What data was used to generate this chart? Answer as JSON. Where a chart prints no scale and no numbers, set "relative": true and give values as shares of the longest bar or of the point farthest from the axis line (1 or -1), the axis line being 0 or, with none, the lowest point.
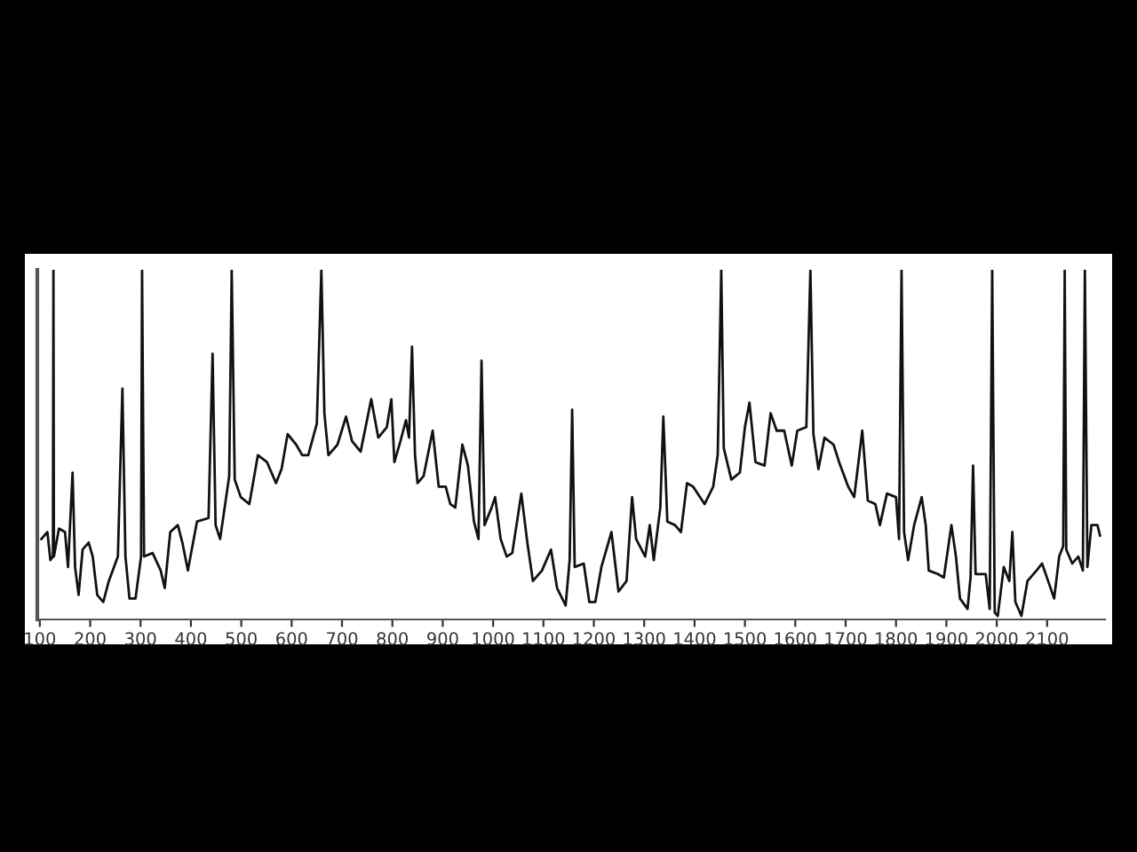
{
  "chart_data": {
    "type": "line",
    "relative": true,
    "color": "#111111",
    "grid": false,
    "legend": false,
    "marker": "none",
    "line_style": "solid",
    "tick_labels": "x",
    "xlim": [
      95,
      2215
    ],
    "xticks": [
      100,
      200,
      300,
      400,
      500,
      600,
      700,
      800,
      900,
      1000,
      1100,
      1200,
      1300,
      1400,
      1500,
      1600,
      1700,
      1800,
      1900,
      2000,
      2100
    ],
    "x": [
      103,
      115,
      121,
      126,
      127,
      128,
      138,
      150,
      156,
      165,
      170,
      177,
      185,
      197,
      205,
      214,
      226,
      237,
      255,
      264,
      270,
      278,
      290,
      301,
      303,
      307,
      324,
      340,
      348,
      359,
      374,
      383,
      394,
      412,
      435,
      443,
      449,
      458,
      470,
      476,
      481,
      487,
      499,
      516,
      533,
      551,
      569,
      580,
      592,
      609,
      621,
      633,
      650,
      659,
      665,
      673,
      691,
      708,
      720,
      737,
      758,
      772,
      789,
      798,
      804,
      816,
      827,
      833,
      839,
      845,
      850,
      862,
      880,
      892,
      906,
      915,
      925,
      939,
      950,
      962,
      971,
      977,
      983,
      997,
      1004,
      1015,
      1027,
      1038,
      1056,
      1068,
      1079,
      1097,
      1115,
      1127,
      1144,
      1152,
      1157,
      1162,
      1180,
      1191,
      1203,
      1215,
      1235,
      1249,
      1265,
      1276,
      1284,
      1302,
      1311,
      1319,
      1332,
      1338,
      1346,
      1361,
      1373,
      1385,
      1397,
      1420,
      1437,
      1446,
      1453,
      1458,
      1473,
      1490,
      1500,
      1509,
      1521,
      1539,
      1551,
      1563,
      1578,
      1593,
      1604,
      1622,
      1630,
      1636,
      1646,
      1658,
      1676,
      1687,
      1705,
      1717,
      1733,
      1744,
      1759,
      1768,
      1782,
      1800,
      1806,
      1811,
      1816,
      1824,
      1836,
      1851,
      1859,
      1865,
      1883,
      1895,
      1910,
      1919,
      1927,
      1942,
      1948,
      1953,
      1958,
      1978,
      1986,
      1991,
      1996,
      2002,
      2014,
      2025,
      2031,
      2037,
      2049,
      2061,
      2079,
      2090,
      2102,
      2114,
      2124,
      2132,
      2135,
      2138,
      2150,
      2162,
      2171,
      2175,
      2180,
      2188,
      2200,
      2205
    ],
    "values": [
      0.23,
      0.25,
      0.17,
      0.18,
      1.0,
      0.18,
      0.26,
      0.25,
      0.15,
      0.42,
      0.15,
      0.07,
      0.2,
      0.22,
      0.18,
      0.07,
      0.05,
      0.11,
      0.18,
      0.66,
      0.18,
      0.06,
      0.06,
      0.18,
      1.0,
      0.18,
      0.19,
      0.14,
      0.09,
      0.25,
      0.27,
      0.22,
      0.14,
      0.28,
      0.29,
      0.76,
      0.27,
      0.23,
      0.35,
      0.41,
      1.0,
      0.4,
      0.35,
      0.33,
      0.47,
      0.45,
      0.39,
      0.43,
      0.53,
      0.5,
      0.47,
      0.47,
      0.56,
      1.0,
      0.59,
      0.47,
      0.5,
      0.58,
      0.51,
      0.48,
      0.63,
      0.52,
      0.55,
      0.63,
      0.45,
      0.51,
      0.57,
      0.52,
      0.78,
      0.47,
      0.39,
      0.41,
      0.54,
      0.38,
      0.38,
      0.33,
      0.32,
      0.5,
      0.44,
      0.28,
      0.23,
      0.74,
      0.27,
      0.32,
      0.35,
      0.23,
      0.18,
      0.19,
      0.36,
      0.22,
      0.11,
      0.14,
      0.2,
      0.09,
      0.04,
      0.17,
      0.6,
      0.15,
      0.16,
      0.05,
      0.05,
      0.15,
      0.25,
      0.08,
      0.11,
      0.35,
      0.23,
      0.18,
      0.27,
      0.17,
      0.32,
      0.58,
      0.28,
      0.27,
      0.25,
      0.39,
      0.38,
      0.33,
      0.38,
      0.47,
      1.0,
      0.49,
      0.4,
      0.42,
      0.55,
      0.62,
      0.45,
      0.44,
      0.59,
      0.54,
      0.54,
      0.44,
      0.54,
      0.55,
      1.0,
      0.53,
      0.43,
      0.52,
      0.5,
      0.45,
      0.38,
      0.35,
      0.54,
      0.34,
      0.33,
      0.27,
      0.36,
      0.35,
      0.23,
      1.0,
      0.25,
      0.17,
      0.27,
      0.35,
      0.27,
      0.14,
      0.13,
      0.12,
      0.27,
      0.18,
      0.06,
      0.03,
      0.12,
      0.44,
      0.13,
      0.13,
      0.03,
      1.0,
      0.02,
      0.01,
      0.15,
      0.11,
      0.25,
      0.05,
      0.01,
      0.11,
      0.14,
      0.16,
      0.11,
      0.06,
      0.18,
      0.21,
      1.0,
      0.2,
      0.16,
      0.18,
      0.14,
      1.0,
      0.15,
      0.27,
      0.27,
      0.24
    ]
  }
}
